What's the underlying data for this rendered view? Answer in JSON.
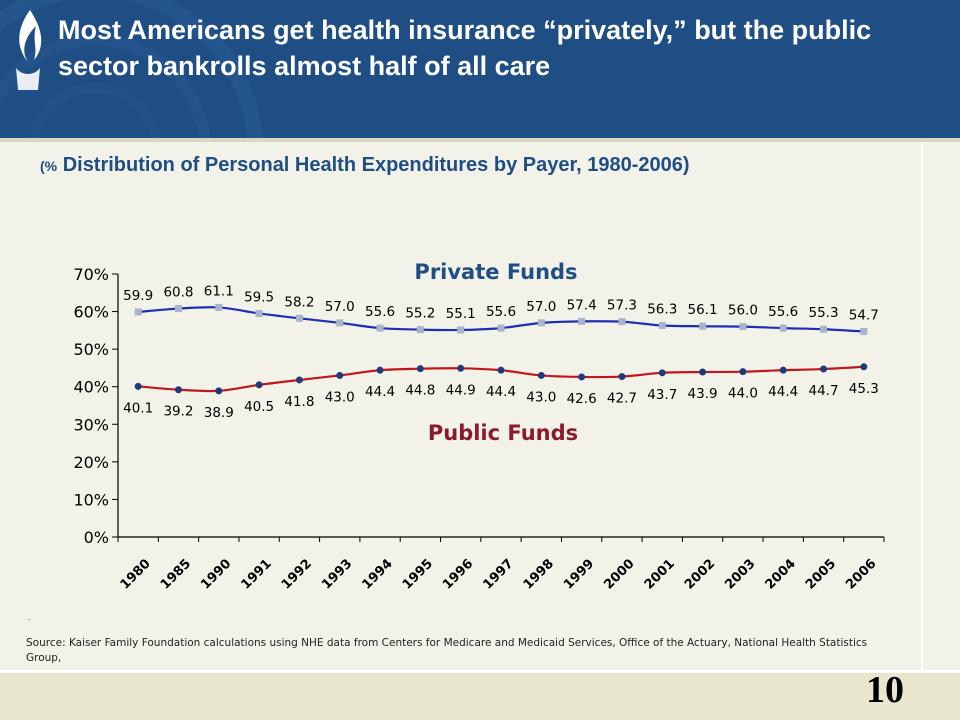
{
  "slide": {
    "title": "Most Americans get health insurance “privately,” but the public sector bankrolls almost half of all care",
    "subtitle_prefix": "(%",
    "subtitle": "Distribution of Personal Health Expenditures by Payer, 1980-2006)",
    "source_dot": ".",
    "source": "Source: Kaiser Family Foundation calculations using NHE data from Centers for Medicare and Medicaid Services, Office of the Actuary, National Health Statistics Group,",
    "page_number": "10",
    "colors": {
      "header_bg": "#1f4e85",
      "private": "#1f2fb5",
      "public": "#c0171c",
      "private_marker": "#a9b3c9",
      "public_marker": "#1f3a7a"
    }
  },
  "chart_data": {
    "type": "line",
    "title": "(% Distribution of Personal Health Expenditures by Payer, 1980-2006)",
    "categories": [
      "1980",
      "1985",
      "1990",
      "1991",
      "1992",
      "1993",
      "1994",
      "1995",
      "1996",
      "1997",
      "1998",
      "1999",
      "2000",
      "2001",
      "2002",
      "2003",
      "2004",
      "2005",
      "2006"
    ],
    "series": [
      {
        "name": "Private Funds",
        "values": [
          59.9,
          60.8,
          61.1,
          59.5,
          58.2,
          57.0,
          55.6,
          55.2,
          55.1,
          55.6,
          57.0,
          57.4,
          57.3,
          56.3,
          56.1,
          56.0,
          55.6,
          55.3,
          54.7
        ]
      },
      {
        "name": "Public Funds",
        "values": [
          40.1,
          39.2,
          38.9,
          40.5,
          41.8,
          43.0,
          44.4,
          44.8,
          44.9,
          44.4,
          43.0,
          42.6,
          42.7,
          43.7,
          43.9,
          44.0,
          44.4,
          44.7,
          45.3
        ]
      }
    ],
    "ylim": [
      0,
      70
    ],
    "yticks": [
      0,
      10,
      20,
      30,
      40,
      50,
      60,
      70
    ],
    "ytick_suffix": "%",
    "grid": false,
    "legend": "inline labels"
  }
}
